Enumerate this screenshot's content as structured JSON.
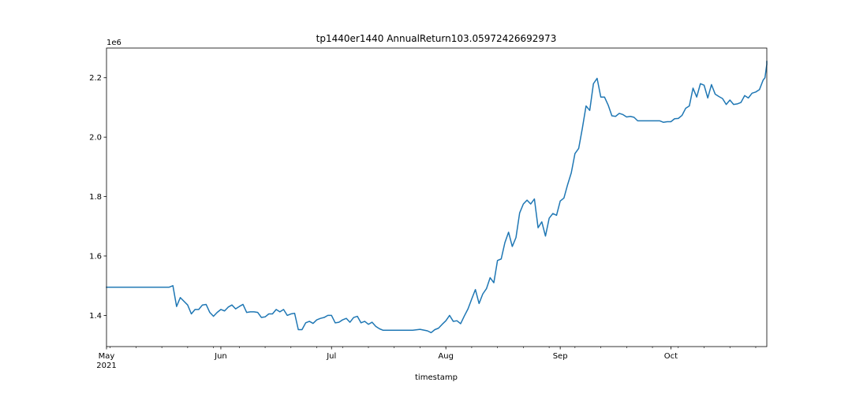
{
  "chart_data": {
    "type": "line",
    "title": "tp1440er1440 AnnualReturn103.05972426692973",
    "xlabel": "timestamp",
    "ylabel": "",
    "y_offset_label": "1e6",
    "x_start": "2021-05-01",
    "x_end": "2021-10-27",
    "xlim": [
      "2021-05-01",
      "2021-10-27"
    ],
    "ylim": [
      1.295,
      2.3
    ],
    "y_ticks": [
      1.4,
      1.6,
      1.8,
      2.0,
      2.2
    ],
    "y_tick_labels": [
      "1.4",
      "1.6",
      "1.8",
      "2.0",
      "2.2"
    ],
    "x_major_ticks": [
      {
        "date": "2021-05-01",
        "label": "May",
        "sublabel": "2021"
      },
      {
        "date": "2021-06-01",
        "label": "Jun",
        "sublabel": ""
      },
      {
        "date": "2021-07-01",
        "label": "Jul",
        "sublabel": ""
      },
      {
        "date": "2021-08-01",
        "label": "Aug",
        "sublabel": ""
      },
      {
        "date": "2021-09-01",
        "label": "Sep",
        "sublabel": ""
      },
      {
        "date": "2021-10-01",
        "label": "Oct",
        "sublabel": ""
      }
    ],
    "grid": false,
    "legend": "none",
    "series": [
      {
        "color": "#1f77b4",
        "points": [
          [
            "2021-05-01",
            1.495
          ],
          [
            "2021-05-18",
            1.495
          ],
          [
            "2021-05-19",
            1.5
          ],
          [
            "2021-05-20",
            1.43
          ],
          [
            "2021-05-21",
            1.46
          ],
          [
            "2021-05-23",
            1.435
          ],
          [
            "2021-05-24",
            1.405
          ],
          [
            "2021-05-25",
            1.42
          ],
          [
            "2021-05-26",
            1.42
          ],
          [
            "2021-05-27",
            1.435
          ],
          [
            "2021-05-28",
            1.437
          ],
          [
            "2021-05-29",
            1.41
          ],
          [
            "2021-05-30",
            1.397
          ],
          [
            "2021-05-31",
            1.41
          ],
          [
            "2021-06-01",
            1.42
          ],
          [
            "2021-06-02",
            1.415
          ],
          [
            "2021-06-03",
            1.428
          ],
          [
            "2021-06-04",
            1.435
          ],
          [
            "2021-06-05",
            1.422
          ],
          [
            "2021-06-06",
            1.43
          ],
          [
            "2021-06-07",
            1.437
          ],
          [
            "2021-06-08",
            1.41
          ],
          [
            "2021-06-09",
            1.412
          ],
          [
            "2021-06-10",
            1.412
          ],
          [
            "2021-06-11",
            1.41
          ],
          [
            "2021-06-12",
            1.393
          ],
          [
            "2021-06-13",
            1.395
          ],
          [
            "2021-06-14",
            1.405
          ],
          [
            "2021-06-15",
            1.405
          ],
          [
            "2021-06-16",
            1.42
          ],
          [
            "2021-06-17",
            1.412
          ],
          [
            "2021-06-18",
            1.42
          ],
          [
            "2021-06-19",
            1.4
          ],
          [
            "2021-06-20",
            1.405
          ],
          [
            "2021-06-21",
            1.407
          ],
          [
            "2021-06-22",
            1.352
          ],
          [
            "2021-06-23",
            1.352
          ],
          [
            "2021-06-24",
            1.375
          ],
          [
            "2021-06-25",
            1.38
          ],
          [
            "2021-06-26",
            1.373
          ],
          [
            "2021-06-27",
            1.385
          ],
          [
            "2021-06-28",
            1.39
          ],
          [
            "2021-06-29",
            1.393
          ],
          [
            "2021-06-30",
            1.4
          ],
          [
            "2021-07-01",
            1.4
          ],
          [
            "2021-07-02",
            1.375
          ],
          [
            "2021-07-03",
            1.377
          ],
          [
            "2021-07-04",
            1.385
          ],
          [
            "2021-07-05",
            1.39
          ],
          [
            "2021-07-06",
            1.377
          ],
          [
            "2021-07-07",
            1.393
          ],
          [
            "2021-07-08",
            1.397
          ],
          [
            "2021-07-09",
            1.375
          ],
          [
            "2021-07-10",
            1.38
          ],
          [
            "2021-07-11",
            1.37
          ],
          [
            "2021-07-12",
            1.377
          ],
          [
            "2021-07-13",
            1.363
          ],
          [
            "2021-07-14",
            1.355
          ],
          [
            "2021-07-15",
            1.35
          ],
          [
            "2021-07-20",
            1.35
          ],
          [
            "2021-07-23",
            1.35
          ],
          [
            "2021-07-25",
            1.353
          ],
          [
            "2021-07-27",
            1.348
          ],
          [
            "2021-07-28",
            1.342
          ],
          [
            "2021-07-29",
            1.352
          ],
          [
            "2021-07-30",
            1.357
          ],
          [
            "2021-07-31",
            1.37
          ],
          [
            "2021-08-01",
            1.382
          ],
          [
            "2021-08-02",
            1.4
          ],
          [
            "2021-08-03",
            1.38
          ],
          [
            "2021-08-04",
            1.382
          ],
          [
            "2021-08-05",
            1.372
          ],
          [
            "2021-08-06",
            1.398
          ],
          [
            "2021-08-07",
            1.422
          ],
          [
            "2021-08-08",
            1.455
          ],
          [
            "2021-08-09",
            1.487
          ],
          [
            "2021-08-10",
            1.44
          ],
          [
            "2021-08-11",
            1.472
          ],
          [
            "2021-08-12",
            1.49
          ],
          [
            "2021-08-13",
            1.527
          ],
          [
            "2021-08-14",
            1.51
          ],
          [
            "2021-08-15",
            1.585
          ],
          [
            "2021-08-16",
            1.59
          ],
          [
            "2021-08-17",
            1.645
          ],
          [
            "2021-08-18",
            1.68
          ],
          [
            "2021-08-19",
            1.632
          ],
          [
            "2021-08-20",
            1.662
          ],
          [
            "2021-08-21",
            1.745
          ],
          [
            "2021-08-22",
            1.775
          ],
          [
            "2021-08-23",
            1.788
          ],
          [
            "2021-08-24",
            1.775
          ],
          [
            "2021-08-25",
            1.792
          ],
          [
            "2021-08-26",
            1.695
          ],
          [
            "2021-08-27",
            1.715
          ],
          [
            "2021-08-28",
            1.667
          ],
          [
            "2021-08-29",
            1.727
          ],
          [
            "2021-08-30",
            1.743
          ],
          [
            "2021-08-31",
            1.737
          ],
          [
            "2021-09-01",
            1.785
          ],
          [
            "2021-09-02",
            1.795
          ],
          [
            "2021-09-03",
            1.84
          ],
          [
            "2021-09-04",
            1.88
          ],
          [
            "2021-09-05",
            1.945
          ],
          [
            "2021-09-06",
            1.962
          ],
          [
            "2021-09-07",
            2.03
          ],
          [
            "2021-09-08",
            2.105
          ],
          [
            "2021-09-09",
            2.09
          ],
          [
            "2021-09-10",
            2.18
          ],
          [
            "2021-09-11",
            2.198
          ],
          [
            "2021-09-12",
            2.135
          ],
          [
            "2021-09-13",
            2.135
          ],
          [
            "2021-09-14",
            2.108
          ],
          [
            "2021-09-15",
            2.072
          ],
          [
            "2021-09-16",
            2.07
          ],
          [
            "2021-09-17",
            2.08
          ],
          [
            "2021-09-18",
            2.076
          ],
          [
            "2021-09-19",
            2.068
          ],
          [
            "2021-09-20",
            2.07
          ],
          [
            "2021-09-21",
            2.067
          ],
          [
            "2021-09-22",
            2.055
          ],
          [
            "2021-09-28",
            2.055
          ],
          [
            "2021-09-29",
            2.05
          ],
          [
            "2021-09-30",
            2.052
          ],
          [
            "2021-10-01",
            2.052
          ],
          [
            "2021-10-02",
            2.062
          ],
          [
            "2021-10-03",
            2.063
          ],
          [
            "2021-10-04",
            2.073
          ],
          [
            "2021-10-05",
            2.097
          ],
          [
            "2021-10-06",
            2.105
          ],
          [
            "2021-10-07",
            2.165
          ],
          [
            "2021-10-08",
            2.135
          ],
          [
            "2021-10-09",
            2.18
          ],
          [
            "2021-10-10",
            2.175
          ],
          [
            "2021-10-11",
            2.132
          ],
          [
            "2021-10-12",
            2.177
          ],
          [
            "2021-10-13",
            2.145
          ],
          [
            "2021-10-14",
            2.137
          ],
          [
            "2021-10-15",
            2.13
          ],
          [
            "2021-10-16",
            2.11
          ],
          [
            "2021-10-17",
            2.125
          ],
          [
            "2021-10-18",
            2.11
          ],
          [
            "2021-10-19",
            2.112
          ],
          [
            "2021-10-20",
            2.117
          ],
          [
            "2021-10-21",
            2.14
          ],
          [
            "2021-10-22",
            2.132
          ],
          [
            "2021-10-23",
            2.148
          ],
          [
            "2021-10-24",
            2.152
          ],
          [
            "2021-10-25",
            2.16
          ],
          [
            "2021-10-26",
            2.192
          ],
          [
            "2021-10-26T12:00",
            2.2
          ],
          [
            "2021-10-27",
            2.245
          ],
          [
            "2021-10-27T00:01",
            2.255
          ]
        ]
      }
    ]
  }
}
